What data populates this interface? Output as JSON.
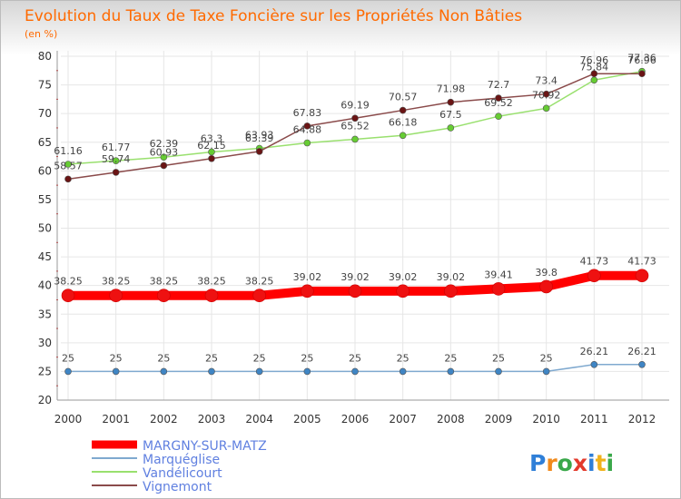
{
  "chart_data": {
    "type": "line",
    "title": "Evolution du Taux de Taxe Foncière sur les Propriétés Non Bâties",
    "subtitle": "(en %)",
    "x": [
      "2000",
      "2001",
      "2002",
      "2003",
      "2004",
      "2005",
      "2006",
      "2007",
      "2008",
      "2009",
      "2010",
      "2011",
      "2012"
    ],
    "ylim": [
      20,
      80
    ],
    "yticks": [
      20,
      25,
      30,
      35,
      40,
      45,
      50,
      55,
      60,
      65,
      70,
      75,
      80
    ],
    "grid": true,
    "legend_position": "bottom-left",
    "series": [
      {
        "name": "MARGNY-SUR-MATZ",
        "color": "#ff0000",
        "point_color": "#ee1111",
        "values": [
          38.25,
          38.25,
          38.25,
          38.25,
          38.25,
          39.02,
          39.02,
          39.02,
          39.02,
          39.41,
          39.8,
          41.73,
          41.73
        ],
        "labels": [
          "38.25",
          "38.25",
          "38.25",
          "38.25",
          "38.25",
          "39.02",
          "39.02",
          "39.02",
          "39.02",
          "39.41",
          "39.8",
          "41.73",
          "41.73"
        ]
      },
      {
        "name": "Marquéglise",
        "color": "#7fa9cf",
        "point_color": "#3f85c4",
        "values": [
          25,
          25,
          25,
          25,
          25,
          25,
          25,
          25,
          25,
          25,
          25,
          26.21,
          26.21
        ],
        "labels": [
          "25",
          "25",
          "25",
          "25",
          "25",
          "25",
          "25",
          "25",
          "25",
          "25",
          "25",
          "26.21",
          "26.21"
        ]
      },
      {
        "name": "Vandélicourt",
        "color": "#99e06e",
        "point_color": "#66cc33",
        "values": [
          61.16,
          61.77,
          62.39,
          63.3,
          63.93,
          64.88,
          65.52,
          66.18,
          67.5,
          69.52,
          70.92,
          75.84,
          77.36
        ],
        "labels": [
          "61.16",
          "61.77",
          "62.39",
          "63.3",
          "63.93",
          "64.88",
          "65.52",
          "66.18",
          "67.5",
          "69.52",
          "70.92",
          "75.84",
          "77.36"
        ]
      },
      {
        "name": "Vignemont",
        "color": "#8a4a4a",
        "point_color": "#6a1414",
        "values": [
          58.57,
          59.74,
          60.93,
          62.15,
          63.39,
          67.83,
          69.19,
          70.57,
          71.98,
          72.7,
          73.4,
          76.96,
          76.96
        ],
        "labels": [
          "58.57",
          "59.74",
          "60.93",
          "62.15",
          "63.39",
          "67.83",
          "69.19",
          "70.57",
          "71.98",
          "72.7",
          "73.4",
          "76.96",
          "76.96"
        ]
      }
    ]
  },
  "brand": {
    "logo_text": "Proxiti"
  }
}
